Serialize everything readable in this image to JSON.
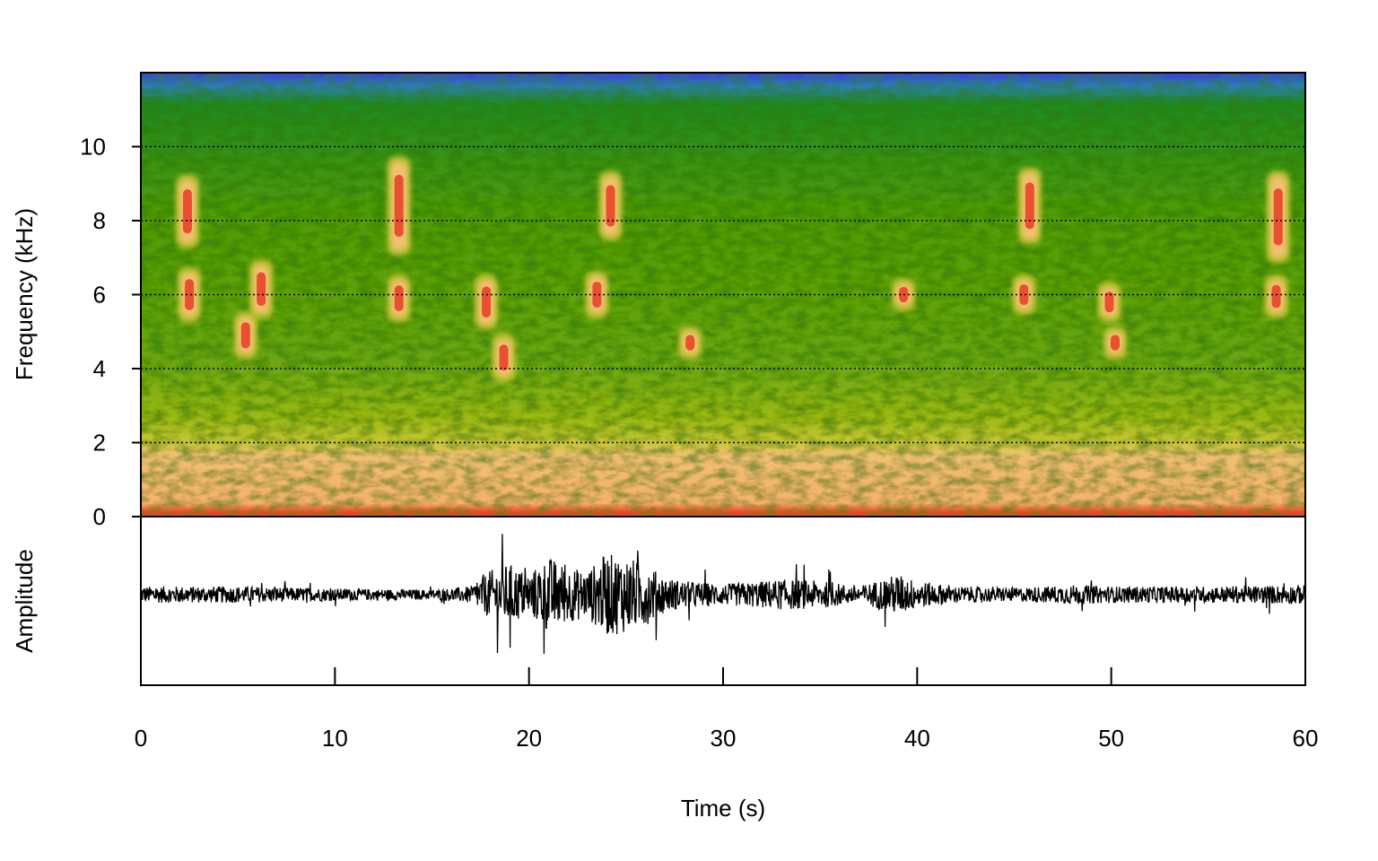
{
  "chart_data": {
    "type": "spectrogram",
    "title": "",
    "xlabel": "Time (s)",
    "ylabel": "Frequency (kHz)",
    "amplitude_label": "Amplitude",
    "xlim": [
      0,
      60
    ],
    "ylim": [
      0,
      12
    ],
    "x_ticks": [
      0,
      10,
      20,
      30,
      40,
      50,
      60
    ],
    "y_ticks": [
      0,
      2,
      4,
      6,
      8,
      10
    ],
    "gridlines_y": [
      2,
      4,
      6,
      8,
      10
    ],
    "grid": "dotted horizontal",
    "colors": {
      "high_freq_noise": "#3a3adc",
      "background": "#4e9a10",
      "mid": "#b8c21e",
      "low": "#f0c070",
      "peak": "#e8442a",
      "max": "#ffffff"
    },
    "calls": [
      {
        "t": 2.4,
        "f_low": 7.4,
        "f_high": 9.1
      },
      {
        "t": 2.5,
        "f_low": 5.4,
        "f_high": 6.6
      },
      {
        "t": 5.4,
        "f_low": 4.4,
        "f_high": 5.4
      },
      {
        "t": 6.2,
        "f_low": 5.5,
        "f_high": 6.8
      },
      {
        "t": 13.3,
        "f_low": 7.2,
        "f_high": 9.6
      },
      {
        "t": 13.3,
        "f_low": 5.4,
        "f_high": 6.4
      },
      {
        "t": 17.8,
        "f_low": 5.2,
        "f_high": 6.4
      },
      {
        "t": 18.7,
        "f_low": 3.8,
        "f_high": 4.8
      },
      {
        "t": 24.2,
        "f_low": 7.6,
        "f_high": 9.2
      },
      {
        "t": 23.5,
        "f_low": 5.5,
        "f_high": 6.5
      },
      {
        "t": 28.3,
        "f_low": 4.4,
        "f_high": 5.0
      },
      {
        "t": 39.3,
        "f_low": 5.7,
        "f_high": 6.3
      },
      {
        "t": 45.8,
        "f_low": 7.5,
        "f_high": 9.3
      },
      {
        "t": 45.5,
        "f_low": 5.6,
        "f_high": 6.4
      },
      {
        "t": 49.9,
        "f_low": 5.4,
        "f_high": 6.2
      },
      {
        "t": 50.2,
        "f_low": 4.4,
        "f_high": 5.0
      },
      {
        "t": 58.6,
        "f_low": 7.0,
        "f_high": 9.2
      },
      {
        "t": 58.5,
        "f_low": 5.5,
        "f_high": 6.4
      }
    ],
    "waveform_envelope": {
      "t": [
        0,
        5,
        10,
        15,
        17,
        18,
        19,
        20,
        21,
        22,
        23,
        24,
        25,
        26,
        27,
        28,
        30,
        33,
        35,
        37,
        39,
        40,
        42,
        45,
        48,
        50,
        55,
        60
      ],
      "amplitude": [
        0.12,
        0.12,
        0.09,
        0.07,
        0.12,
        0.35,
        0.45,
        0.3,
        0.55,
        0.4,
        0.35,
        0.6,
        0.55,
        0.45,
        0.25,
        0.2,
        0.15,
        0.22,
        0.2,
        0.12,
        0.3,
        0.2,
        0.12,
        0.1,
        0.14,
        0.12,
        0.12,
        0.14
      ]
    }
  }
}
